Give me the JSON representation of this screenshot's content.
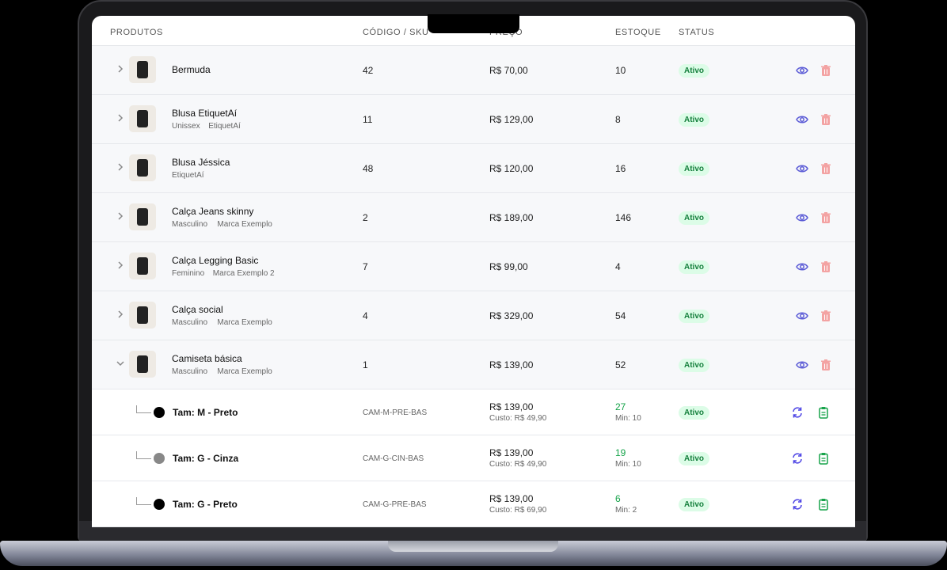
{
  "header": {
    "columns": [
      "PRODUTOS",
      "CÓDIGO / SKU",
      "PREÇO",
      "ESTOQUE",
      "STATUS"
    ]
  },
  "products": [
    {
      "name": "Bermuda",
      "tags": [],
      "code": "42",
      "price": "R$ 70,00",
      "stock": "10",
      "status": "Ativo"
    },
    {
      "name": "Blusa EtiquetAí",
      "tags": [
        "Unissex",
        "EtiquetAí"
      ],
      "code": "11",
      "price": "R$ 129,00",
      "stock": "8",
      "status": "Ativo"
    },
    {
      "name": "Blusa Jéssica",
      "tags": [
        "EtiquetAí"
      ],
      "code": "48",
      "price": "R$ 120,00",
      "stock": "16",
      "status": "Ativo"
    },
    {
      "name": "Calça Jeans skinny",
      "tags": [
        "Masculino",
        "Marca Exemplo"
      ],
      "code": "2",
      "price": "R$ 189,00",
      "stock": "146",
      "status": "Ativo"
    },
    {
      "name": "Calça Legging Basic",
      "tags": [
        "Feminino",
        "Marca Exemplo 2"
      ],
      "code": "7",
      "price": "R$ 99,00",
      "stock": "4",
      "status": "Ativo"
    },
    {
      "name": "Calça social",
      "tags": [
        "Masculino",
        "Marca Exemplo"
      ],
      "code": "4",
      "price": "R$ 329,00",
      "stock": "54",
      "status": "Ativo"
    },
    {
      "name": "Camiseta básica",
      "tags": [
        "Masculino",
        "Marca Exemplo"
      ],
      "code": "1",
      "price": "R$ 139,00",
      "stock": "52",
      "status": "Ativo"
    }
  ],
  "variants": [
    {
      "name": "Tam: M - Preto",
      "sku": "CAM-M-PRE-BAS",
      "price": "R$ 139,00",
      "cost": "Custo: R$ 49,90",
      "stock": "27",
      "min": "Min: 10",
      "status": "Ativo",
      "color": "#000000"
    },
    {
      "name": "Tam: G - Cinza",
      "sku": "CAM-G-CIN-BAS",
      "price": "R$ 139,00",
      "cost": "Custo: R$ 49,90",
      "stock": "19",
      "min": "Min: 10",
      "status": "Ativo",
      "color": "#888888"
    },
    {
      "name": "Tam: G - Preto",
      "sku": "CAM-G-PRE-BAS",
      "price": "R$ 139,00",
      "cost": "Custo: R$ 69,90",
      "stock": "6",
      "min": "Min: 2",
      "status": "Ativo",
      "color": "#000000"
    }
  ]
}
